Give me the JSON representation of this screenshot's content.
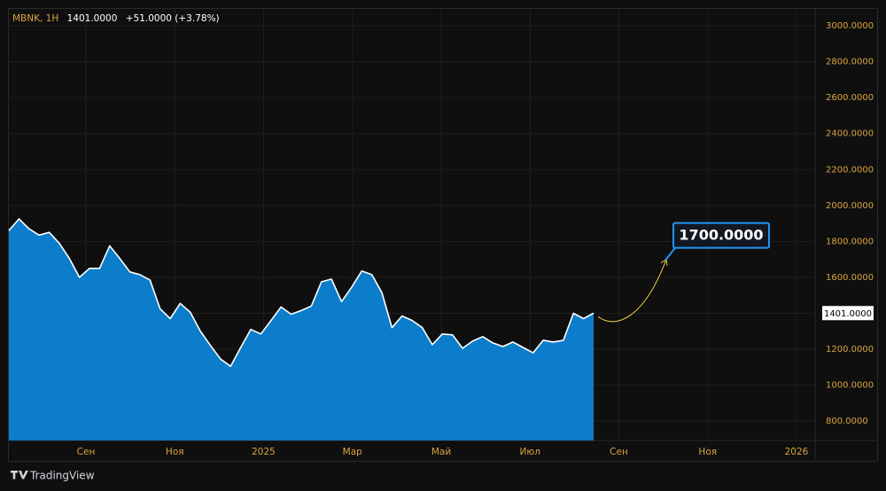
{
  "chart_data": {
    "type": "area",
    "symbol": "MBNK, 1H",
    "last_price": {
      "value": 1401,
      "label": "1401.0000"
    },
    "change": "+51.0000 (+3.78%)",
    "values": [
      1860,
      1925,
      1870,
      1835,
      1850,
      1790,
      1705,
      1600,
      1650,
      1650,
      1775,
      1705,
      1630,
      1615,
      1585,
      1425,
      1370,
      1455,
      1405,
      1300,
      1220,
      1145,
      1105,
      1210,
      1310,
      1285,
      1360,
      1435,
      1395,
      1415,
      1440,
      1575,
      1590,
      1465,
      1545,
      1635,
      1615,
      1515,
      1320,
      1385,
      1360,
      1320,
      1225,
      1285,
      1280,
      1205,
      1245,
      1270,
      1235,
      1215,
      1240,
      1210,
      1180,
      1250,
      1240,
      1250,
      1400,
      1370,
      1401
    ],
    "color": "#0b7dcb",
    "line_color": "#ffffff",
    "ylim": [
      692,
      3094
    ],
    "yticks": [
      {
        "value": 800,
        "label": "800.0000"
      },
      {
        "value": 1000,
        "label": "1000.0000"
      },
      {
        "value": 1200,
        "label": "1200.0000"
      },
      {
        "value": 1400,
        "label": "1400.0000"
      },
      {
        "value": 1600,
        "label": "1600.0000"
      },
      {
        "value": 1800,
        "label": "1800.0000"
      },
      {
        "value": 2000,
        "label": "2000.0000"
      },
      {
        "value": 2200,
        "label": "2200.0000"
      },
      {
        "value": 2400,
        "label": "2400.0000"
      },
      {
        "value": 2600,
        "label": "2600.0000"
      },
      {
        "value": 2800,
        "label": "2800.0000"
      },
      {
        "value": 3000,
        "label": "3000.0000"
      }
    ],
    "xticks": [
      "Сен",
      "Ноя",
      "2025",
      "Мар",
      "Май",
      "Июл",
      "Сен",
      "Ноя",
      "2026"
    ],
    "grid": true,
    "annotation": {
      "value": 1700,
      "label": "1700.0000",
      "color": "#f5d54a"
    },
    "brand": "TradingView"
  }
}
